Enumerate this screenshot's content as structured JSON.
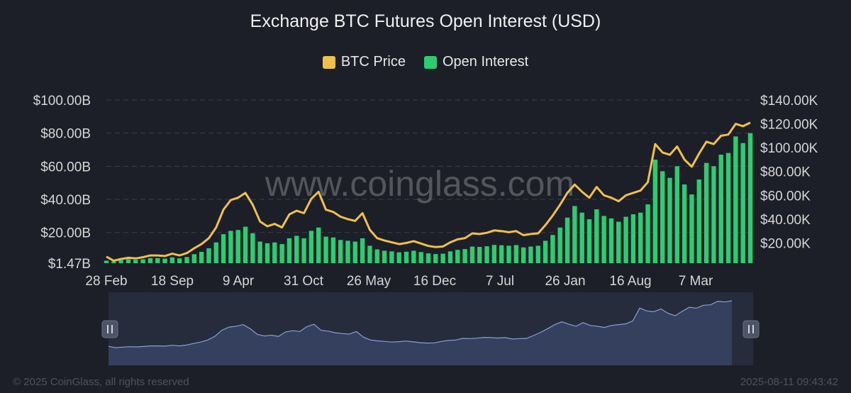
{
  "watermark": "www.coinglass.com",
  "footer": {
    "copyright": "© 2025 CoinGlass, all rights reserved",
    "timestamp": "2025-08-11 09:43:42"
  },
  "colors": {
    "background": "#1c1f27",
    "btc_price": "#f0c04c",
    "open_interest": "#2ecc71",
    "navigator_fill": "#34405e",
    "navigator_line": "#8a9ed6"
  },
  "navigator": {
    "left_handle_icon": "pause-handle-icon",
    "right_handle_icon": "pause-handle-icon"
  },
  "chart_data": {
    "type": "bar",
    "title": "Exchange BTC Futures Open Interest (USD)",
    "legend": [
      "BTC Price",
      "Open Interest"
    ],
    "legend_position": "top-center",
    "grid": true,
    "x_tick_labels": [
      "28 Feb",
      "18 Sep",
      "9 Apr",
      "31 Oct",
      "26 May",
      "16 Dec",
      "7 Jul",
      "26 Jan",
      "16 Aug",
      "7 Mar"
    ],
    "y_left": {
      "ticks": [
        "$1.47B",
        "$20.00B",
        "$40.00B",
        "$60.00B",
        "$80.00B",
        "$100.00B"
      ],
      "tick_values": [
        1.47,
        20,
        40,
        60,
        80,
        100
      ],
      "range": [
        1.47,
        100
      ]
    },
    "y_right": {
      "ticks": [
        "$20.00K",
        "$40.00K",
        "$60.00K",
        "$80.00K",
        "$100.00K",
        "$120.00K",
        "$140.00K"
      ],
      "tick_values": [
        20000,
        40000,
        60000,
        80000,
        100000,
        120000,
        140000
      ],
      "range": [
        3000,
        140000
      ]
    },
    "series": [
      {
        "name": "BTC Price",
        "type": "line",
        "values": [
          8500,
          5000,
          6500,
          7500,
          7000,
          8000,
          9500,
          9500,
          9000,
          11000,
          9500,
          11500,
          15500,
          19000,
          24000,
          33000,
          48000,
          56000,
          58000,
          62000,
          52000,
          38000,
          34000,
          36000,
          33000,
          44000,
          47000,
          45000,
          57000,
          63000,
          48000,
          46000,
          42000,
          40000,
          38500,
          45000,
          31000,
          24000,
          22000,
          20500,
          19000,
          20000,
          21500,
          19500,
          17500,
          16500,
          17000,
          20500,
          23000,
          24000,
          28000,
          27500,
          28500,
          30500,
          30000,
          29000,
          30000,
          26500,
          27500,
          28000,
          35000,
          43000,
          52000,
          62000,
          69000,
          63000,
          58000,
          67000,
          60000,
          58000,
          55000,
          60000,
          62000,
          64000,
          71000,
          103000,
          96000,
          94000,
          101000,
          90000,
          84000,
          95000,
          105000,
          103000,
          110000,
          111000,
          120000,
          118000,
          121000
        ]
      },
      {
        "name": "Open Interest",
        "type": "bar",
        "values": [
          3.0,
          2.4,
          3.3,
          3.9,
          3.5,
          3.8,
          4.5,
          4.5,
          4.2,
          5.0,
          4.4,
          5.2,
          6.9,
          8.3,
          10.5,
          14.0,
          19.0,
          21.0,
          21.5,
          23.5,
          19.5,
          14.5,
          13.5,
          14.0,
          13.0,
          16.5,
          18.0,
          16.5,
          21.0,
          23.0,
          17.5,
          17.0,
          15.5,
          15.0,
          14.5,
          16.5,
          12.0,
          9.8,
          9.0,
          8.6,
          8.0,
          8.4,
          9.0,
          8.2,
          7.4,
          7.0,
          7.2,
          8.6,
          9.5,
          10.0,
          11.5,
          11.3,
          11.7,
          12.5,
          12.3,
          12.0,
          12.4,
          11.0,
          11.5,
          12.0,
          15.0,
          18.5,
          23.0,
          29.0,
          36.0,
          32.0,
          28.0,
          34.0,
          30.0,
          28.5,
          26.5,
          29.5,
          31.0,
          32.0,
          37.0,
          64.0,
          57.0,
          53.0,
          60.0,
          49.0,
          43.0,
          52.0,
          62.0,
          60.0,
          67.0,
          68.0,
          78.0,
          74.0,
          80.0
        ]
      }
    ]
  }
}
